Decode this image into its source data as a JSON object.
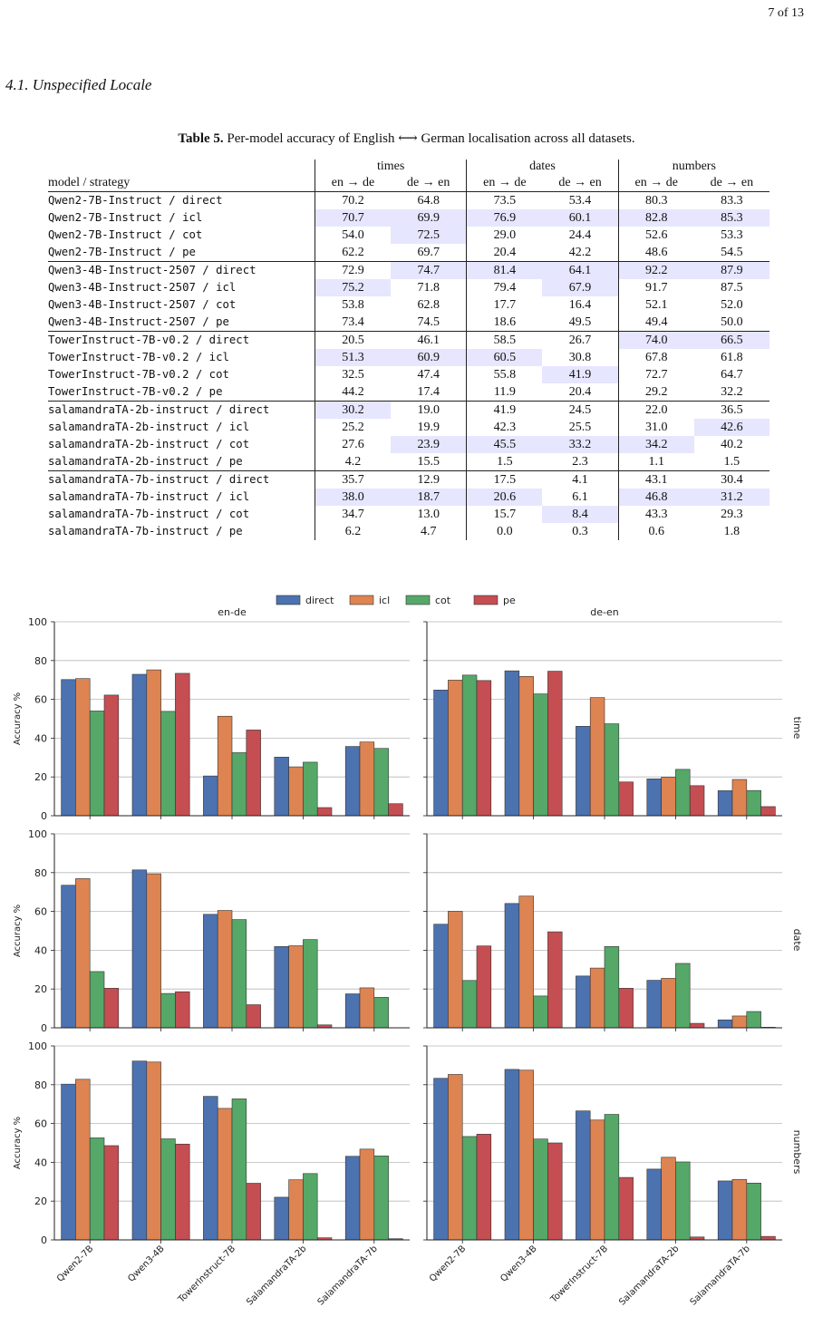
{
  "page_number": "7 of 13",
  "section_heading": "4.1. Unspecified Locale",
  "table": {
    "caption_label": "Table 5.",
    "caption_text": "Per-model accuracy of English ⟷ German localisation across all datasets.",
    "groups": [
      "times",
      "dates",
      "numbers"
    ],
    "col_label": "model / strategy",
    "sub_headers": [
      "en → de",
      "de → en",
      "en → de",
      "de → en",
      "en → de",
      "de → en"
    ],
    "rows": [
      {
        "model": "Qwen2-7B-Instruct / direct",
        "values": [
          "70.2",
          "64.8",
          "73.5",
          "53.4",
          "80.3",
          "83.3"
        ],
        "hl": [],
        "bold": []
      },
      {
        "model": "Qwen2-7B-Instruct / icl",
        "values": [
          "70.7",
          "69.9",
          "76.9",
          "60.1",
          "82.8",
          "85.3"
        ],
        "hl": [
          0,
          1,
          2,
          3,
          4,
          5
        ],
        "bold": []
      },
      {
        "model": "Qwen2-7B-Instruct / cot",
        "values": [
          "54.0",
          "72.5",
          "29.0",
          "24.4",
          "52.6",
          "53.3"
        ],
        "hl": [
          1
        ],
        "bold": []
      },
      {
        "model": "Qwen2-7B-Instruct / pe",
        "values": [
          "62.2",
          "69.7",
          "20.4",
          "42.2",
          "48.6",
          "54.5"
        ],
        "hl": [],
        "bold": []
      },
      {
        "model": "Qwen3-4B-Instruct-2507 / direct",
        "values": [
          "72.9",
          "74.7",
          "81.4",
          "64.1",
          "92.2",
          "87.9"
        ],
        "hl": [
          1,
          2,
          3,
          4,
          5
        ],
        "bold": [
          1,
          2,
          4,
          5
        ]
      },
      {
        "model": "Qwen3-4B-Instruct-2507 / icl",
        "values": [
          "75.2",
          "71.8",
          "79.4",
          "67.9",
          "91.7",
          "87.5"
        ],
        "hl": [
          0,
          3
        ],
        "bold": [
          0,
          3
        ]
      },
      {
        "model": "Qwen3-4B-Instruct-2507 / cot",
        "values": [
          "53.8",
          "62.8",
          "17.7",
          "16.4",
          "52.1",
          "52.0"
        ],
        "hl": [],
        "bold": []
      },
      {
        "model": "Qwen3-4B-Instruct-2507 / pe",
        "values": [
          "73.4",
          "74.5",
          "18.6",
          "49.5",
          "49.4",
          "50.0"
        ],
        "hl": [],
        "bold": []
      },
      {
        "model": "TowerInstruct-7B-v0.2 / direct",
        "values": [
          "20.5",
          "46.1",
          "58.5",
          "26.7",
          "74.0",
          "66.5"
        ],
        "hl": [
          4,
          5
        ],
        "bold": []
      },
      {
        "model": "TowerInstruct-7B-v0.2 / icl",
        "values": [
          "51.3",
          "60.9",
          "60.5",
          "30.8",
          "67.8",
          "61.8"
        ],
        "hl": [
          0,
          1,
          2
        ],
        "bold": []
      },
      {
        "model": "TowerInstruct-7B-v0.2 / cot",
        "values": [
          "32.5",
          "47.4",
          "55.8",
          "41.9",
          "72.7",
          "64.7"
        ],
        "hl": [
          3
        ],
        "bold": []
      },
      {
        "model": "TowerInstruct-7B-v0.2 / pe",
        "values": [
          "44.2",
          "17.4",
          "11.9",
          "20.4",
          "29.2",
          "32.2"
        ],
        "hl": [],
        "bold": []
      },
      {
        "model": "salamandraTA-2b-instruct / direct",
        "values": [
          "30.2",
          "19.0",
          "41.9",
          "24.5",
          "22.0",
          "36.5"
        ],
        "hl": [
          0
        ],
        "bold": []
      },
      {
        "model": "salamandraTA-2b-instruct / icl",
        "values": [
          "25.2",
          "19.9",
          "42.3",
          "25.5",
          "31.0",
          "42.6"
        ],
        "hl": [
          5
        ],
        "bold": []
      },
      {
        "model": "salamandraTA-2b-instruct / cot",
        "values": [
          "27.6",
          "23.9",
          "45.5",
          "33.2",
          "34.2",
          "40.2"
        ],
        "hl": [
          1,
          2,
          3,
          4
        ],
        "bold": []
      },
      {
        "model": "salamandraTA-2b-instruct / pe",
        "values": [
          "4.2",
          "15.5",
          "1.5",
          "2.3",
          "1.1",
          "1.5"
        ],
        "hl": [],
        "bold": []
      },
      {
        "model": "salamandraTA-7b-instruct / direct",
        "values": [
          "35.7",
          "12.9",
          "17.5",
          "4.1",
          "43.1",
          "30.4"
        ],
        "hl": [],
        "bold": []
      },
      {
        "model": "salamandraTA-7b-instruct / icl",
        "values": [
          "38.0",
          "18.7",
          "20.6",
          "6.1",
          "46.8",
          "31.2"
        ],
        "hl": [
          0,
          1,
          2,
          4,
          5
        ],
        "bold": []
      },
      {
        "model": "salamandraTA-7b-instruct / cot",
        "values": [
          "34.7",
          "13.0",
          "15.7",
          "8.4",
          "43.3",
          "29.3"
        ],
        "hl": [
          3
        ],
        "bold": []
      },
      {
        "model": "salamandraTA-7b-instruct / pe",
        "values": [
          "6.2",
          "4.7",
          "0.0",
          "0.3",
          "0.6",
          "1.8"
        ],
        "hl": [],
        "bold": []
      }
    ]
  },
  "chart_data": {
    "type": "bar",
    "layout": "3x2 grid",
    "legend": {
      "placement": "top-center",
      "entries": [
        "direct",
        "icl",
        "cot",
        "pe"
      ]
    },
    "colors": {
      "direct": "#4c72b0",
      "icl": "#dd8452",
      "cot": "#55a868",
      "pe": "#c44e52"
    },
    "column_titles": [
      "en-de",
      "de-en"
    ],
    "row_titles": [
      "time",
      "date",
      "numbers"
    ],
    "ylabel": "Accuracy %",
    "ylim": [
      0,
      100
    ],
    "yticks": [
      "0",
      "20",
      "40",
      "60",
      "80",
      "100"
    ],
    "grid": "horizontal",
    "categories": [
      "Qwen2-7B",
      "Qwen3-4B",
      "TowerInstruct-7B",
      "SalamandraTA-2b",
      "SalamandraTA-7b"
    ],
    "panels": [
      {
        "row": "time",
        "col": "en-de",
        "series": [
          {
            "name": "direct",
            "values": [
              70.2,
              72.9,
              20.5,
              30.2,
              35.7
            ]
          },
          {
            "name": "icl",
            "values": [
              70.7,
              75.2,
              51.3,
              25.2,
              38.0
            ]
          },
          {
            "name": "cot",
            "values": [
              54.0,
              53.8,
              32.5,
              27.6,
              34.7
            ]
          },
          {
            "name": "pe",
            "values": [
              62.2,
              73.4,
              44.2,
              4.2,
              6.2
            ]
          }
        ]
      },
      {
        "row": "time",
        "col": "de-en",
        "series": [
          {
            "name": "direct",
            "values": [
              64.8,
              74.7,
              46.1,
              19.0,
              12.9
            ]
          },
          {
            "name": "icl",
            "values": [
              69.9,
              71.8,
              60.9,
              19.9,
              18.7
            ]
          },
          {
            "name": "cot",
            "values": [
              72.5,
              62.8,
              47.4,
              23.9,
              13.0
            ]
          },
          {
            "name": "pe",
            "values": [
              69.7,
              74.5,
              17.4,
              15.5,
              4.7
            ]
          }
        ]
      },
      {
        "row": "date",
        "col": "en-de",
        "series": [
          {
            "name": "direct",
            "values": [
              73.5,
              81.4,
              58.5,
              41.9,
              17.5
            ]
          },
          {
            "name": "icl",
            "values": [
              76.9,
              79.4,
              60.5,
              42.3,
              20.6
            ]
          },
          {
            "name": "cot",
            "values": [
              29.0,
              17.7,
              55.8,
              45.5,
              15.7
            ]
          },
          {
            "name": "pe",
            "values": [
              20.4,
              18.6,
              11.9,
              1.5,
              0.0
            ]
          }
        ]
      },
      {
        "row": "date",
        "col": "de-en",
        "series": [
          {
            "name": "direct",
            "values": [
              53.4,
              64.1,
              26.7,
              24.5,
              4.1
            ]
          },
          {
            "name": "icl",
            "values": [
              60.1,
              67.9,
              30.8,
              25.5,
              6.1
            ]
          },
          {
            "name": "cot",
            "values": [
              24.4,
              16.4,
              41.9,
              33.2,
              8.4
            ]
          },
          {
            "name": "pe",
            "values": [
              42.2,
              49.5,
              20.4,
              2.3,
              0.3
            ]
          }
        ]
      },
      {
        "row": "numbers",
        "col": "en-de",
        "series": [
          {
            "name": "direct",
            "values": [
              80.3,
              92.2,
              74.0,
              22.0,
              43.1
            ]
          },
          {
            "name": "icl",
            "values": [
              82.8,
              91.7,
              67.8,
              31.0,
              46.8
            ]
          },
          {
            "name": "cot",
            "values": [
              52.6,
              52.1,
              72.7,
              34.2,
              43.3
            ]
          },
          {
            "name": "pe",
            "values": [
              48.6,
              49.4,
              29.2,
              1.1,
              0.6
            ]
          }
        ]
      },
      {
        "row": "numbers",
        "col": "de-en",
        "series": [
          {
            "name": "direct",
            "values": [
              83.3,
              87.9,
              66.5,
              36.5,
              30.4
            ]
          },
          {
            "name": "icl",
            "values": [
              85.3,
              87.5,
              61.8,
              42.6,
              31.2
            ]
          },
          {
            "name": "cot",
            "values": [
              53.3,
              52.0,
              64.7,
              40.2,
              29.3
            ]
          },
          {
            "name": "pe",
            "values": [
              54.5,
              50.0,
              32.2,
              1.5,
              1.8
            ]
          }
        ]
      }
    ]
  }
}
